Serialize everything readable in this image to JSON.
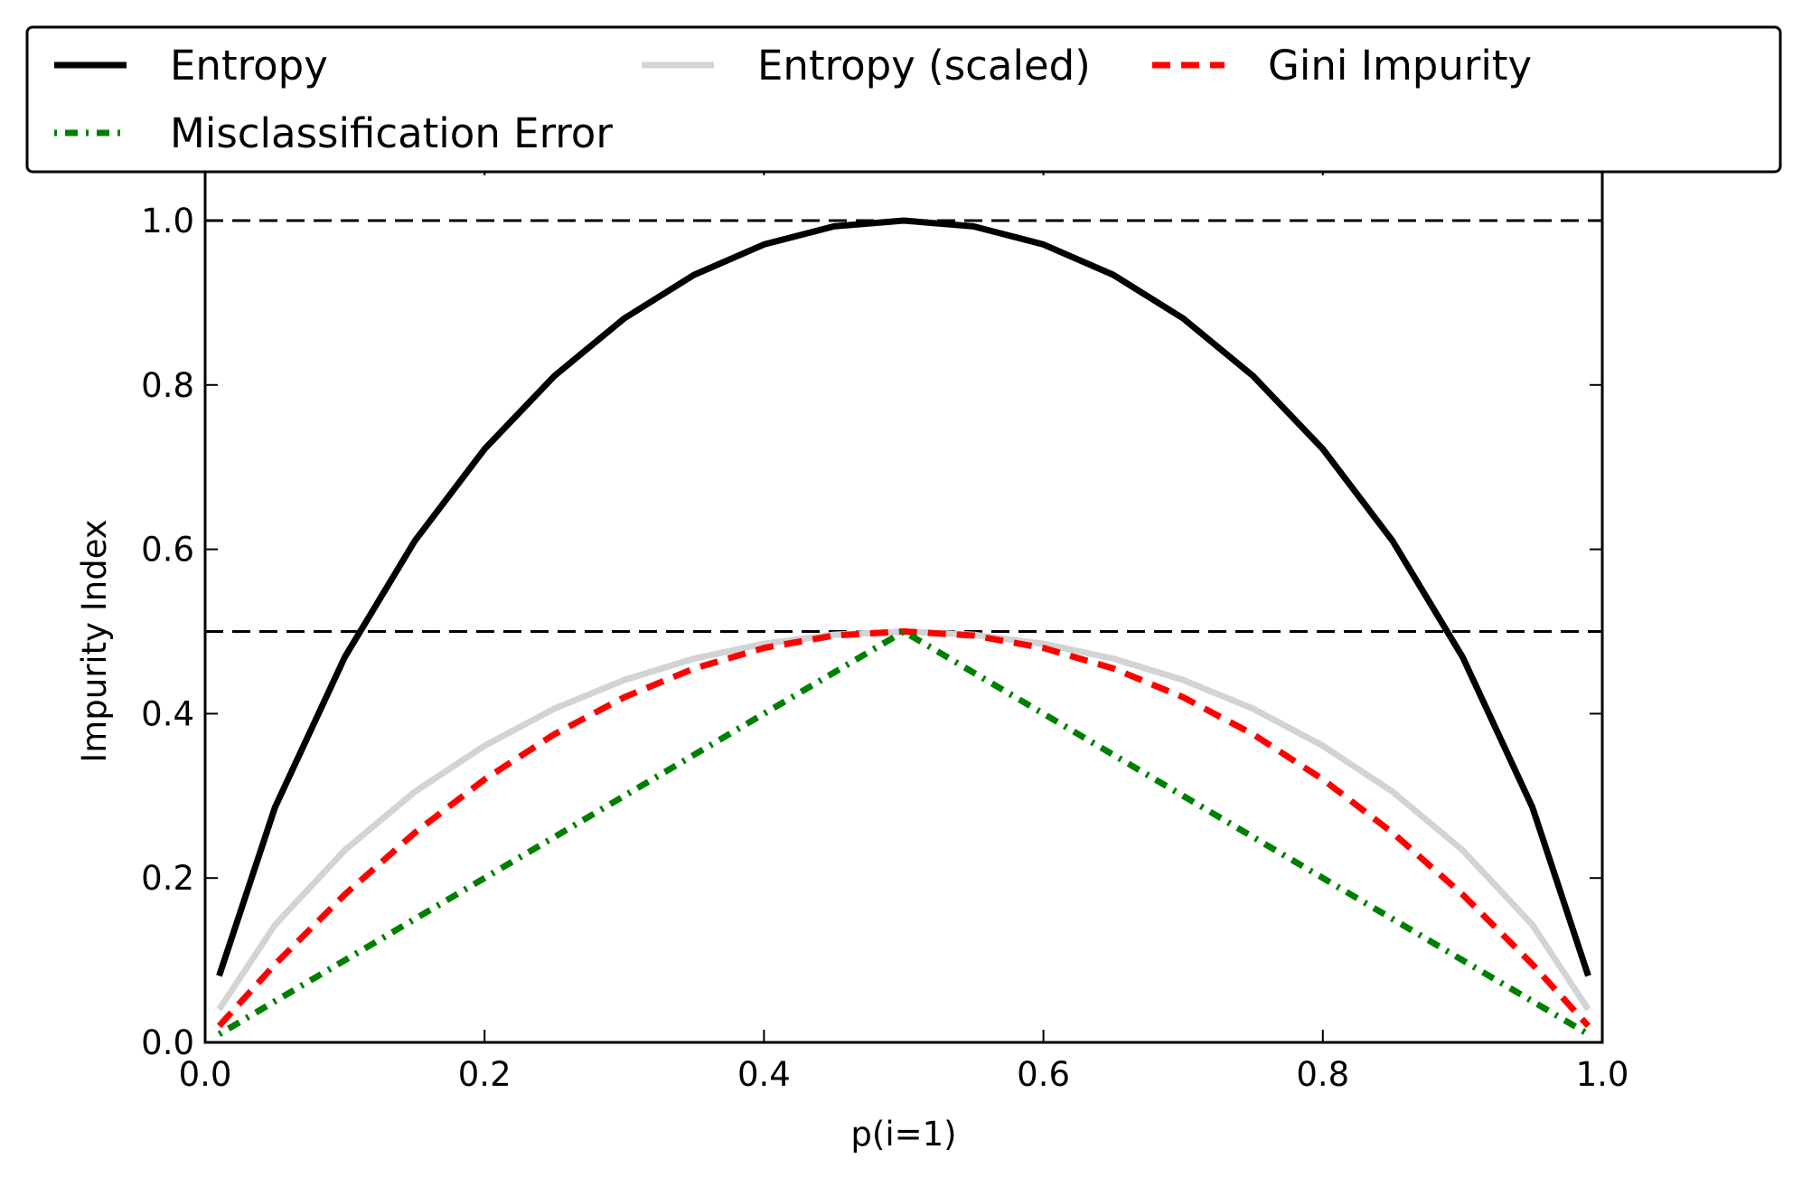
{
  "chart_data": {
    "type": "line",
    "xlabel": "p(i=1)",
    "ylabel": "Impurity Index",
    "xlim": [
      0.0,
      1.0
    ],
    "ylim": [
      0.0,
      1.05
    ],
    "x_ticks": [
      "0.0",
      "0.2",
      "0.4",
      "0.6",
      "0.8",
      "1.0"
    ],
    "y_ticks": [
      "0.0",
      "0.2",
      "0.4",
      "0.6",
      "0.8",
      "1.0"
    ],
    "grid": false,
    "legend_position": "top, spanning full width, 3 columns",
    "reference_lines": [
      {
        "y": 1.0,
        "style": "dashed",
        "color": "#000000"
      },
      {
        "y": 0.5,
        "style": "dashed",
        "color": "#000000"
      }
    ],
    "x": [
      0.01,
      0.05,
      0.1,
      0.15,
      0.2,
      0.25,
      0.3,
      0.35,
      0.4,
      0.45,
      0.5,
      0.55,
      0.6,
      0.65,
      0.7,
      0.75,
      0.8,
      0.85,
      0.9,
      0.95,
      0.99
    ],
    "series": [
      {
        "name": "Entropy",
        "color": "#000000",
        "style": "solid",
        "values": [
          0.081,
          0.286,
          0.469,
          0.61,
          0.722,
          0.811,
          0.881,
          0.934,
          0.971,
          0.993,
          1.0,
          0.993,
          0.971,
          0.934,
          0.881,
          0.811,
          0.722,
          0.61,
          0.469,
          0.286,
          0.081
        ]
      },
      {
        "name": "Entropy (scaled)",
        "color": "#d3d3d3",
        "style": "solid",
        "values": [
          0.04,
          0.143,
          0.234,
          0.305,
          0.361,
          0.406,
          0.441,
          0.467,
          0.485,
          0.496,
          0.5,
          0.496,
          0.485,
          0.467,
          0.441,
          0.406,
          0.361,
          0.305,
          0.234,
          0.143,
          0.04
        ]
      },
      {
        "name": "Gini Impurity",
        "color": "#ff0000",
        "style": "dashed",
        "values": [
          0.02,
          0.095,
          0.18,
          0.255,
          0.32,
          0.375,
          0.42,
          0.455,
          0.48,
          0.495,
          0.5,
          0.495,
          0.48,
          0.455,
          0.42,
          0.375,
          0.32,
          0.255,
          0.18,
          0.095,
          0.02
        ]
      },
      {
        "name": "Misclassification Error",
        "color": "#008000",
        "style": "dashdot",
        "values": [
          0.01,
          0.05,
          0.1,
          0.15,
          0.2,
          0.25,
          0.3,
          0.35,
          0.4,
          0.45,
          0.5,
          0.45,
          0.4,
          0.35,
          0.3,
          0.25,
          0.2,
          0.15,
          0.1,
          0.05,
          0.01
        ]
      }
    ]
  }
}
